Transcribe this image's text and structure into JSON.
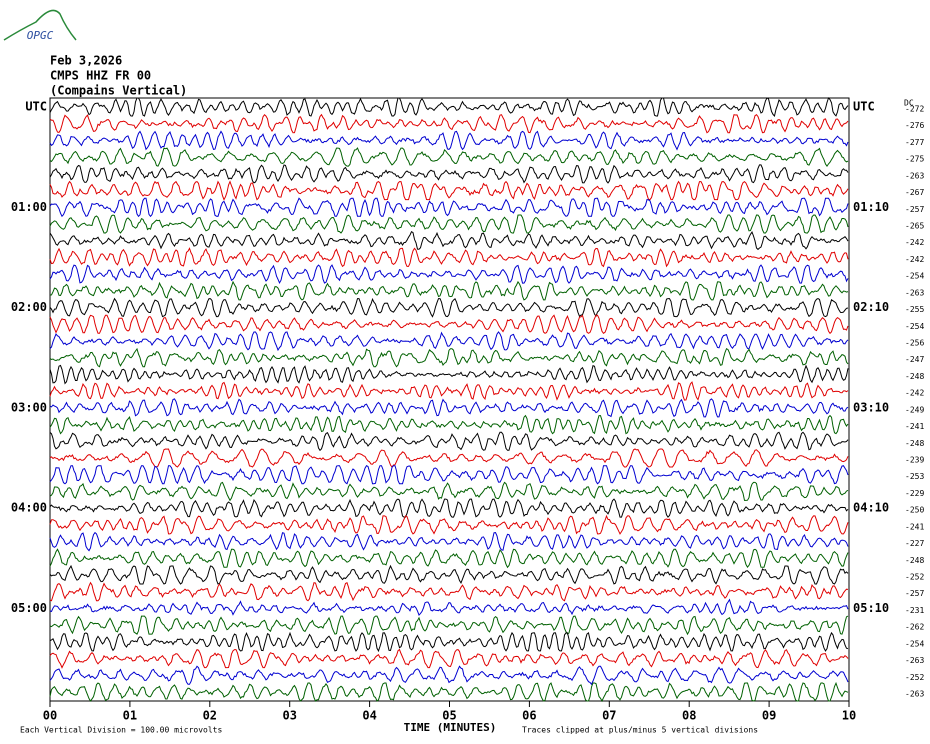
{
  "logo": "OPGC",
  "chart_data": {
    "type": "helicorder",
    "title_lines": [
      "Feb 3,2026",
      "CMPS HHZ FR 00",
      "(Compains Vertical)"
    ],
    "left_labels": [
      "UTC",
      null,
      null,
      null,
      null,
      null,
      "01:00",
      null,
      null,
      null,
      null,
      null,
      "02:00",
      null,
      null,
      null,
      null,
      null,
      "03:00",
      null,
      null,
      null,
      null,
      null,
      "04:00",
      null,
      null,
      null,
      null,
      null,
      "05:00",
      null,
      null,
      null,
      null,
      null
    ],
    "right_labels": [
      "UTC",
      null,
      null,
      null,
      null,
      null,
      "01:10",
      null,
      null,
      null,
      null,
      null,
      "02:10",
      null,
      null,
      null,
      null,
      null,
      "03:10",
      null,
      null,
      null,
      null,
      null,
      "04:10",
      null,
      null,
      null,
      null,
      null,
      "05:10",
      null,
      null,
      null,
      null,
      null
    ],
    "dc_label": "DC",
    "dc_values": [
      -272,
      -276,
      -277,
      -275,
      -263,
      -267,
      -257,
      -265,
      -242,
      -242,
      -254,
      -263,
      -255,
      -254,
      -256,
      -247,
      -248,
      -242,
      -249,
      -241,
      -248,
      -239,
      -253,
      -229,
      -250,
      -241,
      -227,
      -248,
      -252,
      -257,
      -231,
      -262,
      -254,
      -263,
      -252,
      -263
    ],
    "trace_colors": [
      "#000000",
      "#e00000",
      "#0000d0",
      "#006000"
    ],
    "xlim": [
      0,
      10
    ],
    "xticks": [
      {
        "value": 0,
        "label": "00"
      },
      {
        "value": 1,
        "label": "01"
      },
      {
        "value": 2,
        "label": "02"
      },
      {
        "value": 3,
        "label": "03"
      },
      {
        "value": 4,
        "label": "04"
      },
      {
        "value": 5,
        "label": "05"
      },
      {
        "value": 6,
        "label": "06"
      },
      {
        "value": 7,
        "label": "07"
      },
      {
        "value": 8,
        "label": "08"
      },
      {
        "value": 9,
        "label": "09"
      },
      {
        "value": 10,
        "label": "10"
      }
    ],
    "xlabel": "TIME (MINUTES)",
    "footnote_left": "Each Vertical Division =  100.00 microvolts",
    "footnote_right": "Traces clipped at plus/minus 5 vertical divisions"
  }
}
